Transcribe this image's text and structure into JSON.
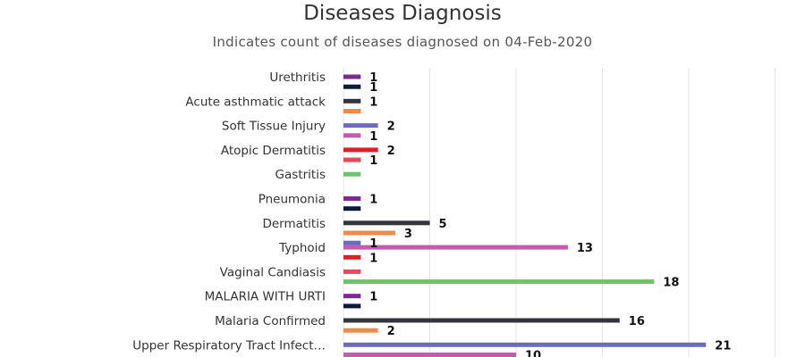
{
  "chart_data": {
    "type": "bar",
    "orientation": "horizontal",
    "title": "Diseases Diagnosis",
    "subtitle": "Indicates count of diseases diagnosed on 04-Feb-2020",
    "xlim": [
      0,
      25
    ],
    "grid": true,
    "categories": [
      "Urethritis",
      "Acute asthmatic attack",
      "Soft Tissue Injury",
      "Atopic Dermatitis",
      "Gastritis",
      "Pneumonia",
      "Dermatitis",
      "Typhoid",
      "Vaginal Candiasis",
      "MALARIA WITH URTI",
      "Malaria Confirmed",
      "Upper Respiratory Tract Infect…"
    ],
    "bars": [
      {
        "category": "Urethritis",
        "value": 1,
        "color": "#7b2d8e",
        "label": "1"
      },
      {
        "category": "Urethritis",
        "value": 1,
        "color": "#0d1b3a",
        "label": "1"
      },
      {
        "category": "Acute asthmatic attack",
        "value": 1,
        "color": "#34343c",
        "label": "1"
      },
      {
        "category": "Acute asthmatic attack",
        "value": 1,
        "color": "#f08a4b",
        "label": ""
      },
      {
        "category": "Soft Tissue Injury",
        "value": 2,
        "color": "#6b6bc0",
        "label": "2"
      },
      {
        "category": "Soft Tissue Injury",
        "value": 1,
        "color": "#c65ab0",
        "label": "1"
      },
      {
        "category": "Atopic Dermatitis",
        "value": 2,
        "color": "#dd1f26",
        "label": "2"
      },
      {
        "category": "Atopic Dermatitis",
        "value": 1,
        "color": "#e8485a",
        "label": "1"
      },
      {
        "category": "Gastritis",
        "value": 1,
        "color": "#6cc56c",
        "label": ""
      },
      {
        "category": "Pneumonia",
        "value": 1,
        "color": "#7b2d8e",
        "label": "1"
      },
      {
        "category": "Pneumonia",
        "value": 1,
        "color": "#0d1b3a",
        "label": ""
      },
      {
        "category": "Dermatitis",
        "value": 5,
        "color": "#34343c",
        "label": "5"
      },
      {
        "category": "Dermatitis",
        "value": 3,
        "color": "#f08a4b",
        "label": "3"
      },
      {
        "category": "Dermatitis",
        "value": 1,
        "color": "#6b6bc0",
        "label": "1"
      },
      {
        "category": "Typhoid",
        "value": 13,
        "color": "#c65ab0",
        "label": "13"
      },
      {
        "category": "Typhoid",
        "value": 1,
        "color": "#dd1f26",
        "label": "1"
      },
      {
        "category": "Vaginal Candiasis",
        "value": 1,
        "color": "#e8485a",
        "label": ""
      },
      {
        "category": "Vaginal Candiasis",
        "value": 18,
        "color": "#6cc56c",
        "label": "18"
      },
      {
        "category": "MALARIA WITH URTI",
        "value": 1,
        "color": "#7b2d8e",
        "label": "1"
      },
      {
        "category": "MALARIA WITH URTI",
        "value": 1,
        "color": "#0d1b3a",
        "label": ""
      },
      {
        "category": "Malaria Confirmed",
        "value": 16,
        "color": "#34343c",
        "label": "16"
      },
      {
        "category": "Malaria Confirmed",
        "value": 2,
        "color": "#f08a4b",
        "label": "2"
      },
      {
        "category": "Upper Respiratory Tract Infect…",
        "value": 21,
        "color": "#6b6bc0",
        "label": "21"
      },
      {
        "category": "Upper Respiratory Tract Infect…",
        "value": 10,
        "color": "#c65ab0",
        "label": "10"
      }
    ]
  }
}
